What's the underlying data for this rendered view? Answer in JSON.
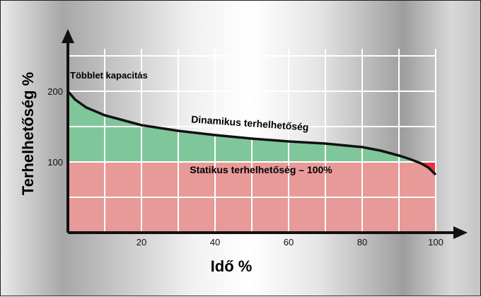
{
  "chart_data": {
    "type": "area",
    "xlabel": "Idő %",
    "ylabel": "Terhelhetőség %",
    "xlim": [
      0,
      100
    ],
    "ylim": [
      0,
      260
    ],
    "x_ticks": [
      "20",
      "40",
      "60",
      "80",
      "100"
    ],
    "y_ticks": [
      "100",
      "200"
    ],
    "grid": true,
    "series": [
      {
        "name": "Dinamikus terhelhetőség",
        "x": [
          0,
          2,
          5,
          10,
          20,
          30,
          40,
          50,
          60,
          70,
          80,
          85,
          90,
          93,
          96,
          98,
          100
        ],
        "y": [
          200,
          188,
          177,
          166,
          152,
          144,
          138,
          133,
          129,
          126,
          121,
          116,
          109,
          104,
          98,
          92,
          82
        ]
      },
      {
        "name": "Statikus terhelhetőség – 100%",
        "x": [
          0,
          100
        ],
        "y": [
          100,
          100
        ]
      }
    ],
    "annotations": [
      {
        "text": "Többlet kapacitás"
      },
      {
        "text": "Dinamikus terhelhetőség"
      },
      {
        "text": "Statikus terhelhetőség – 100%"
      }
    ],
    "colors": {
      "static_fill": "#e89a98",
      "excess_fill": "#7fc79a",
      "curve": "#111111",
      "grid": "#ffffff",
      "corner_red": "#e8323c"
    }
  }
}
